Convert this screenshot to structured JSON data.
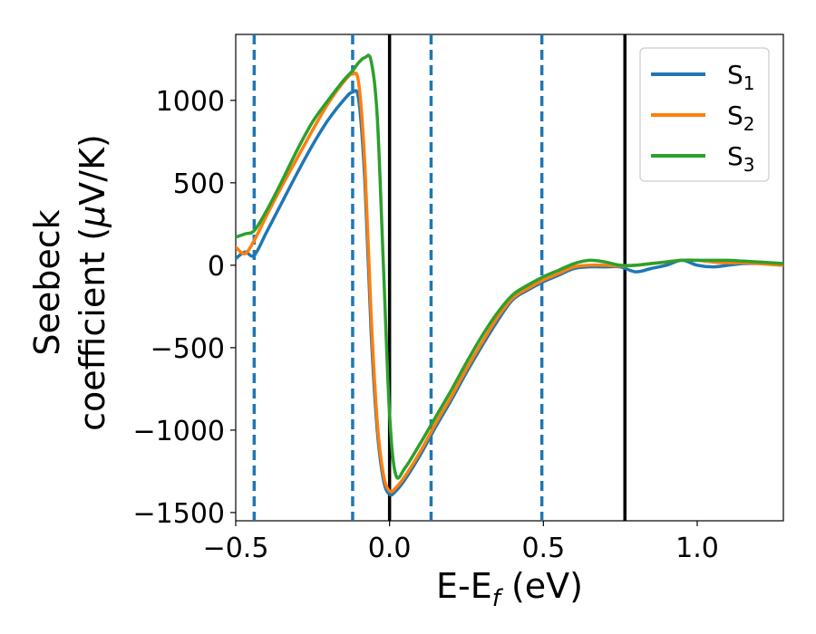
{
  "chart_data": {
    "type": "line",
    "title": "",
    "xlabel": "E-E",
    "xlabel_sub": "f",
    "xlabel_unit": " (eV)",
    "ylabel_line1": "Seebeck",
    "ylabel_line2": "coefficient  (",
    "ylabel_mu": "μ",
    "ylabel_unit": "V/K)",
    "xlim": [
      -0.5,
      1.28
    ],
    "ylim": [
      -1550,
      1400
    ],
    "x_ticks": [
      -0.5,
      0.0,
      0.5,
      1.0
    ],
    "x_tick_labels": [
      "−0.5",
      "0.0",
      "0.5",
      "1.0"
    ],
    "y_ticks": [
      -1500,
      -1000,
      -500,
      0,
      500,
      1000
    ],
    "y_tick_labels": [
      "−1500",
      "−1000",
      "−500",
      "0",
      "500",
      "1000"
    ],
    "grid": false,
    "legend_position": "top-right",
    "vlines_dashed": [
      -0.44,
      -0.12,
      0.135,
      0.495
    ],
    "vlines_solid": [
      0.0,
      0.765
    ],
    "series": [
      {
        "name": "S",
        "name_sub": "1",
        "color": "#1f77b4",
        "x": [
          -0.5,
          -0.47,
          -0.44,
          -0.4,
          -0.35,
          -0.3,
          -0.25,
          -0.2,
          -0.15,
          -0.12,
          -0.1,
          -0.08,
          -0.06,
          -0.04,
          -0.02,
          0.0,
          0.02,
          0.05,
          0.1,
          0.15,
          0.2,
          0.25,
          0.3,
          0.35,
          0.4,
          0.45,
          0.5,
          0.55,
          0.6,
          0.65,
          0.7,
          0.75,
          0.8,
          0.85,
          0.9,
          0.95,
          1.0,
          1.05,
          1.1,
          1.15,
          1.2,
          1.28
        ],
        "y": [
          40,
          80,
          60,
          200,
          380,
          560,
          730,
          880,
          1000,
          1050,
          1000,
          500,
          -400,
          -1000,
          -1300,
          -1390,
          -1370,
          -1300,
          -1150,
          -980,
          -820,
          -650,
          -490,
          -340,
          -210,
          -150,
          -100,
          -60,
          -20,
          -10,
          -10,
          -10,
          -40,
          -20,
          0,
          30,
          0,
          -10,
          0,
          10,
          10,
          0
        ]
      },
      {
        "name": "S",
        "name_sub": "2",
        "color": "#ff7f0e",
        "x": [
          -0.5,
          -0.47,
          -0.44,
          -0.4,
          -0.35,
          -0.3,
          -0.25,
          -0.2,
          -0.15,
          -0.12,
          -0.1,
          -0.08,
          -0.06,
          -0.04,
          -0.02,
          0.0,
          0.02,
          0.05,
          0.1,
          0.15,
          0.2,
          0.25,
          0.3,
          0.35,
          0.4,
          0.45,
          0.5,
          0.55,
          0.6,
          0.65,
          0.7,
          0.75,
          0.8,
          0.85,
          0.9,
          0.95,
          1.0,
          1.05,
          1.1,
          1.15,
          1.2,
          1.28
        ],
        "y": [
          110,
          70,
          150,
          300,
          480,
          650,
          820,
          980,
          1110,
          1160,
          1100,
          600,
          -300,
          -950,
          -1270,
          -1370,
          -1350,
          -1280,
          -1130,
          -960,
          -800,
          -630,
          -470,
          -320,
          -200,
          -140,
          -90,
          -50,
          -10,
          0,
          0,
          -5,
          0,
          10,
          20,
          30,
          30,
          20,
          15,
          15,
          10,
          0
        ]
      },
      {
        "name": "S",
        "name_sub": "3",
        "color": "#2ca02c",
        "x": [
          -0.5,
          -0.47,
          -0.44,
          -0.4,
          -0.35,
          -0.3,
          -0.25,
          -0.2,
          -0.15,
          -0.12,
          -0.1,
          -0.08,
          -0.06,
          -0.04,
          -0.02,
          0.0,
          0.02,
          0.05,
          0.1,
          0.15,
          0.2,
          0.25,
          0.3,
          0.35,
          0.4,
          0.45,
          0.5,
          0.55,
          0.6,
          0.65,
          0.7,
          0.75,
          0.8,
          0.85,
          0.9,
          0.95,
          1.0,
          1.05,
          1.1,
          1.15,
          1.2,
          1.28
        ],
        "y": [
          170,
          190,
          210,
          330,
          510,
          700,
          870,
          1000,
          1120,
          1180,
          1230,
          1260,
          1240,
          900,
          0,
          -900,
          -1270,
          -1230,
          -1080,
          -920,
          -760,
          -590,
          -430,
          -290,
          -180,
          -120,
          -70,
          -30,
          10,
          30,
          20,
          0,
          0,
          10,
          20,
          30,
          30,
          30,
          30,
          25,
          20,
          10
        ]
      }
    ]
  }
}
